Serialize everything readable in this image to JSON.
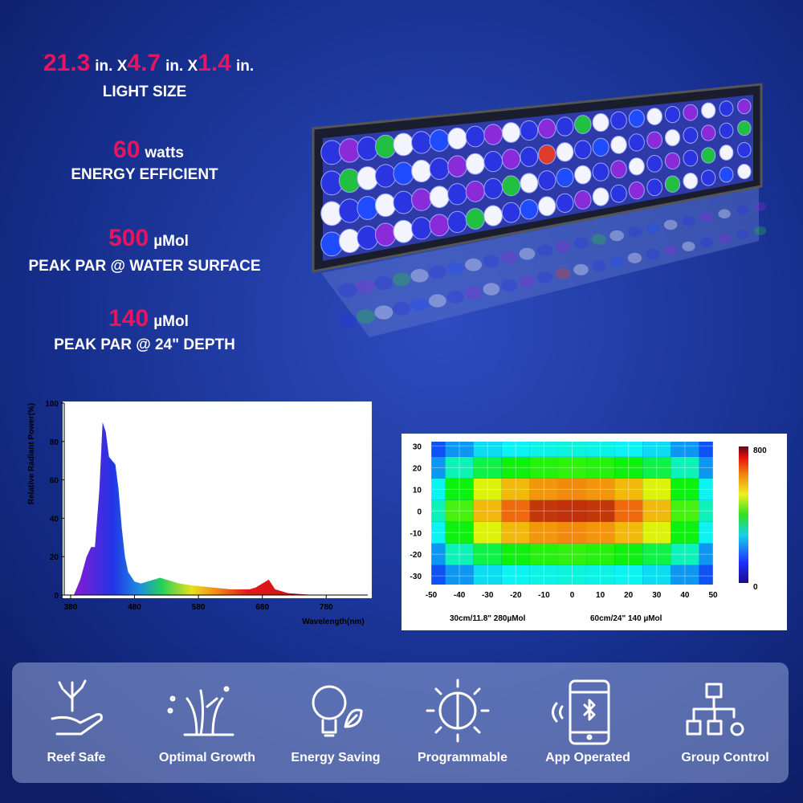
{
  "size": {
    "parts": [
      {
        "value": 21.3,
        "unit": "in. X"
      },
      {
        "value": 4.7,
        "unit": "in. X"
      },
      {
        "value": 1.4,
        "unit": "in."
      }
    ],
    "label": "LIGHT SIZE"
  },
  "specs": [
    {
      "value": 60,
      "unit": "watts",
      "label": "ENERGY EFFICIENT"
    },
    {
      "value": 500,
      "unit": "µMol",
      "label": "PEAK PAR @ WATER SURFACE"
    },
    {
      "value": 140,
      "unit": "µMol",
      "label": "PEAK PAR @ 24\" DEPTH"
    }
  ],
  "chart_data": [
    {
      "type": "area",
      "y_label": "Relative Radiant Power(%)",
      "x_label": "Wavelength(nm)",
      "x": [
        385,
        395,
        405,
        412,
        418,
        425,
        430,
        435,
        440,
        445,
        450,
        455,
        460,
        465,
        470,
        480,
        490,
        500,
        510,
        520,
        530,
        540,
        550,
        570,
        600,
        630,
        660,
        670,
        680,
        690,
        700,
        720,
        760,
        800
      ],
      "values": [
        0,
        8,
        20,
        25,
        25,
        55,
        90,
        85,
        72,
        70,
        68,
        55,
        35,
        20,
        12,
        7,
        6,
        7,
        8,
        9,
        8,
        7,
        6,
        5,
        4,
        3,
        3,
        4,
        6,
        8,
        3,
        1,
        0,
        0
      ],
      "xlim": [
        370,
        845
      ],
      "xticks": [
        380,
        480,
        580,
        680,
        780
      ],
      "ylim": [
        0,
        100
      ],
      "yticks": [
        0,
        20,
        40,
        60,
        80,
        100
      ]
    },
    {
      "type": "heatmap",
      "x": [
        -50,
        -40,
        -30,
        -20,
        -10,
        0,
        10,
        20,
        30,
        40,
        50
      ],
      "y": [
        -30,
        -20,
        -10,
        0,
        10,
        20,
        30
      ],
      "z": [
        [
          60,
          120,
          180,
          200,
          210,
          220,
          210,
          200,
          180,
          120,
          60
        ],
        [
          120,
          250,
          350,
          400,
          420,
          430,
          420,
          400,
          350,
          250,
          120
        ],
        [
          200,
          400,
          580,
          650,
          680,
          690,
          680,
          650,
          580,
          400,
          200
        ],
        [
          250,
          450,
          650,
          720,
          750,
          760,
          750,
          720,
          650,
          450,
          250
        ],
        [
          200,
          400,
          580,
          650,
          680,
          690,
          680,
          650,
          580,
          400,
          200
        ],
        [
          120,
          250,
          350,
          400,
          420,
          430,
          420,
          400,
          350,
          250,
          120
        ],
        [
          60,
          120,
          180,
          200,
          210,
          220,
          210,
          200,
          180,
          120,
          60
        ]
      ],
      "xlim": [
        -50,
        50
      ],
      "xticks": [
        -50,
        -40,
        -30,
        -20,
        -10,
        0,
        10,
        20,
        30,
        40,
        50
      ],
      "ylim": [
        -34,
        32
      ],
      "yticks": [
        -30,
        -20,
        -10,
        0,
        10,
        20,
        30
      ],
      "zlim": [
        0,
        800
      ],
      "zticks": [
        0,
        800
      ],
      "captions": [
        "30cm/11.8\"  280µMol",
        "60cm/24\"  140 µMol"
      ]
    }
  ],
  "features": [
    "Reef Safe",
    "Optimal Growth",
    "Energy Saving",
    "Programmable",
    "App Operated",
    "Group Control"
  ]
}
